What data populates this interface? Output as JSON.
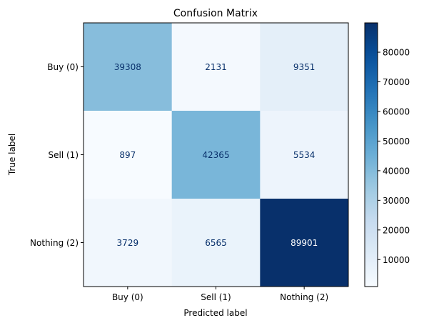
{
  "chart_data": {
    "type": "heatmap",
    "title": "Confusion Matrix",
    "xlabel": "Predicted label",
    "ylabel": "True label",
    "x_categories": [
      "Buy (0)",
      "Sell (1)",
      "Nothing (2)"
    ],
    "y_categories": [
      "Buy (0)",
      "Sell (1)",
      "Nothing (2)"
    ],
    "values": [
      [
        39308,
        2131,
        9351
      ],
      [
        897,
        42365,
        5534
      ],
      [
        3729,
        6565,
        89901
      ]
    ],
    "colormap": "Blues",
    "color_range": [
      897,
      89901
    ],
    "colorbar_ticks": [
      10000,
      20000,
      30000,
      40000,
      50000,
      60000,
      70000,
      80000
    ],
    "colorbar_tick_labels": [
      "10000",
      "20000",
      "30000",
      "40000",
      "50000",
      "60000",
      "70000",
      "80000"
    ],
    "text_colors": {
      "dark_text": "#08306b",
      "light_text": "#ffffff"
    },
    "grid": false,
    "legend": "colorbar-right"
  }
}
